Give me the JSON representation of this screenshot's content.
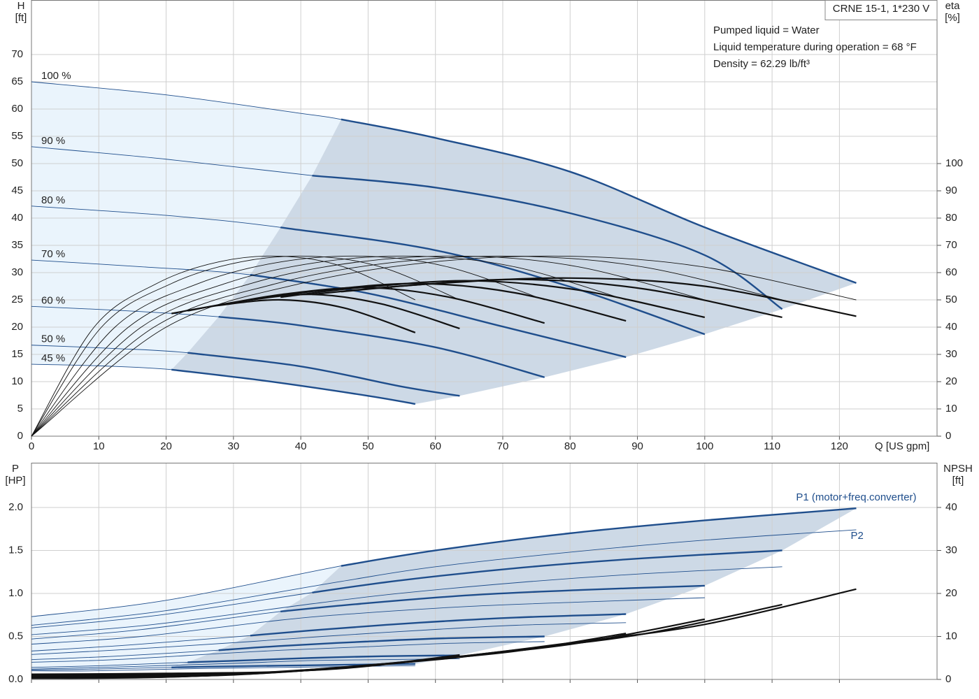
{
  "chart_data": [
    {
      "type": "line",
      "title": "CRNE 15-1, 1*230 V",
      "annotations": [
        "Pumped liquid = Water",
        "Liquid temperature during operation = 68 °F",
        "Density = 62.29 lb/ft³"
      ],
      "ylabel": "H",
      "ylabel_unit": "[ft]",
      "y2label": "eta",
      "y2label_unit": "[%]",
      "xlabel": "Q [US gpm]",
      "xlim": [
        0,
        134.5
      ],
      "xticks": [
        0,
        10,
        20,
        30,
        40,
        50,
        60,
        70,
        80,
        90,
        100,
        110,
        120
      ],
      "ylim": [
        0,
        80
      ],
      "yticks": [
        0,
        5,
        10,
        15,
        20,
        25,
        30,
        35,
        40,
        45,
        50,
        55,
        60,
        65,
        70
      ],
      "y2lim": [
        0,
        160
      ],
      "y2ticks": [
        0,
        10,
        20,
        30,
        40,
        50,
        60,
        70,
        80,
        90,
        100
      ],
      "grid": true,
      "xtick_labels": true,
      "area_colors": [
        "#eaf4fc",
        "#cdd9e6"
      ],
      "series": [
        {
          "name": "100 %",
          "color": "#1f4e8c",
          "line": "thin",
          "label_at": "start",
          "range": [
            46,
            122.5
          ],
          "x": [
            0,
            20,
            40,
            46,
            60,
            80,
            100,
            122.5
          ],
          "values": [
            65,
            62.6,
            59.2,
            58.1,
            54.7,
            48.5,
            38.3,
            28.1
          ]
        },
        {
          "name": "90 %",
          "color": "#1f4e8c",
          "line": "thin",
          "label_at": "start",
          "range": [
            41.7,
            111.5
          ],
          "x": [
            0,
            20,
            41.7,
            60,
            80,
            100,
            111.5
          ],
          "values": [
            53.1,
            50.8,
            47.8,
            45.6,
            40.9,
            33.2,
            23.3
          ]
        },
        {
          "name": "80 %",
          "color": "#1f4e8c",
          "line": "thin",
          "label_at": "start",
          "range": [
            37,
            100
          ],
          "x": [
            0,
            20,
            37,
            60,
            80,
            100
          ],
          "values": [
            42.2,
            40.5,
            38.3,
            34.1,
            27.4,
            18.7
          ]
        },
        {
          "name": "70 %",
          "color": "#1f4e8c",
          "line": "thin",
          "label_at": "start",
          "range": [
            32.5,
            88.3
          ],
          "x": [
            0,
            16,
            32.5,
            50,
            70,
            88.3
          ],
          "values": [
            32.3,
            31.1,
            29.6,
            26.2,
            20.1,
            14.5
          ]
        },
        {
          "name": "60 %",
          "color": "#1f4e8c",
          "line": "thin",
          "label_at": "start",
          "range": [
            27.8,
            76.2
          ],
          "x": [
            0,
            14,
            27.8,
            40,
            60,
            76.2
          ],
          "values": [
            23.8,
            23,
            21.9,
            20.3,
            16.3,
            10.8
          ]
        },
        {
          "name": "50 %",
          "color": "#1f4e8c",
          "line": "thin",
          "label_at": "start",
          "range": [
            23.2,
            63.6
          ],
          "x": [
            0,
            12,
            23.2,
            40,
            55,
            63.6
          ],
          "values": [
            16.7,
            16.1,
            15.3,
            12.8,
            9.1,
            7.4
          ]
        },
        {
          "name": "45 %",
          "color": "#1f4e8c",
          "line": "thin",
          "label_at": "start",
          "range": [
            20.8,
            57
          ],
          "x": [
            0,
            10,
            20.8,
            35,
            50,
            57
          ],
          "values": [
            13.2,
            12.9,
            12.2,
            10.1,
            7.4,
            5.9
          ]
        },
        {
          "color": "#111111",
          "line": "thin",
          "axis": "y2",
          "x": [
            0,
            20,
            40,
            60,
            80,
            100,
            122.5
          ],
          "values": [
            0,
            40,
            56,
            64,
            66,
            62,
            50
          ]
        },
        {
          "color": "#111111",
          "line": "thin",
          "axis": "y2",
          "x": [
            0,
            18.2,
            36.4,
            54.6,
            72.8,
            91,
            111.5
          ],
          "values": [
            0,
            40,
            56,
            64,
            66,
            62,
            50
          ]
        },
        {
          "color": "#111111",
          "line": "thin",
          "axis": "y2",
          "x": [
            0,
            16.3,
            32.6,
            48.9,
            65.2,
            81.5,
            100
          ],
          "values": [
            0,
            40,
            56,
            64,
            66,
            62,
            50
          ]
        },
        {
          "color": "#111111",
          "line": "thin",
          "axis": "y2",
          "x": [
            0,
            14.4,
            28.8,
            43.2,
            57.6,
            72,
            88.3
          ],
          "values": [
            0,
            40,
            56,
            64,
            66,
            62,
            50
          ]
        },
        {
          "color": "#111111",
          "line": "thin",
          "axis": "y2",
          "x": [
            0,
            12.4,
            24.8,
            37.2,
            49.6,
            62,
            76.2
          ],
          "values": [
            0,
            40,
            56,
            64,
            66,
            62,
            50
          ]
        },
        {
          "color": "#111111",
          "line": "thin",
          "axis": "y2",
          "x": [
            0,
            10.4,
            20.8,
            31.2,
            41.6,
            52,
            63.6
          ],
          "values": [
            0,
            40,
            56,
            64,
            66,
            62,
            50
          ]
        },
        {
          "color": "#111111",
          "line": "thin",
          "axis": "y2",
          "x": [
            0,
            9.3,
            18.6,
            27.9,
            37.2,
            46.5,
            57
          ],
          "values": [
            0,
            40,
            56,
            64,
            66,
            62,
            50
          ]
        },
        {
          "color": "#111111",
          "line": "thick",
          "axis": "y2",
          "x": [
            46,
            60,
            80,
            100,
            122.5
          ],
          "values": [
            53,
            56,
            58,
            55,
            44
          ]
        },
        {
          "color": "#111111",
          "line": "thick",
          "axis": "y2",
          "x": [
            41.7,
            54.6,
            72.8,
            91,
            111.5
          ],
          "values": [
            52,
            55,
            57.5,
            54,
            43.6
          ]
        },
        {
          "color": "#111111",
          "line": "thick",
          "axis": "y2",
          "x": [
            37,
            48.9,
            65.2,
            81.5,
            100
          ],
          "values": [
            51,
            54.5,
            57,
            53.5,
            43.6
          ]
        },
        {
          "color": "#111111",
          "line": "thick",
          "axis": "y2",
          "x": [
            32.5,
            43.2,
            57.6,
            72,
            88.3
          ],
          "values": [
            50,
            53.5,
            56,
            52.5,
            42.3
          ]
        },
        {
          "color": "#111111",
          "line": "thick",
          "axis": "y2",
          "x": [
            27.8,
            37.2,
            49.6,
            62,
            76.2
          ],
          "values": [
            48,
            52,
            54.5,
            51,
            41.5
          ]
        },
        {
          "color": "#111111",
          "line": "thick",
          "axis": "y2",
          "x": [
            23.2,
            31.2,
            41.6,
            52,
            63.6
          ],
          "values": [
            46,
            49.5,
            52,
            48.5,
            39.5
          ]
        },
        {
          "color": "#111111",
          "line": "thick",
          "axis": "y2",
          "x": [
            20.8,
            27.9,
            37.2,
            46.5,
            57
          ],
          "values": [
            45,
            48,
            50,
            47,
            38
          ]
        }
      ]
    },
    {
      "type": "line",
      "ylabel": "P",
      "ylabel_unit": "[HP]",
      "y2label": "NPSH",
      "y2label_unit": "[ft]",
      "xlim": [
        0,
        134.5
      ],
      "xticks": [
        0,
        10,
        20,
        30,
        40,
        50,
        60,
        70,
        80,
        90,
        100,
        110,
        120
      ],
      "ylim": [
        0,
        2.52
      ],
      "yticks": [
        {
          "value": 0,
          "label": "0.0"
        },
        0.5,
        {
          "value": 1,
          "label": "1.0"
        },
        1.5,
        {
          "value": 2,
          "label": "2.0"
        }
      ],
      "y2lim": [
        0,
        50.4
      ],
      "y2ticks": [
        0,
        10,
        20,
        30,
        40
      ],
      "grid": true,
      "xtick_labels": false,
      "area_colors": [
        "#eaf4fc",
        "#cdd9e6"
      ],
      "series": [
        {
          "name": "P1 (motor+freq.converter)",
          "color": "#1f4e8c",
          "line": "thin",
          "label_at": "above",
          "range": [
            46,
            122.5
          ],
          "x": [
            0,
            20,
            46,
            60,
            80,
            100,
            122.5
          ],
          "values": [
            0.73,
            0.92,
            1.32,
            1.5,
            1.7,
            1.85,
            1.99
          ]
        },
        {
          "color": "#1f4e8c",
          "line": "thin",
          "range": [
            41.7,
            111.5
          ],
          "x": [
            0,
            18.2,
            41.7,
            54.6,
            72.8,
            91,
            111.5
          ],
          "values": [
            0.6,
            0.74,
            1.01,
            1.15,
            1.3,
            1.41,
            1.5
          ]
        },
        {
          "color": "#1f4e8c",
          "line": "thin",
          "range": [
            37,
            100
          ],
          "x": [
            0,
            16.3,
            37,
            48.9,
            65.2,
            81.5,
            100
          ],
          "values": [
            0.47,
            0.58,
            0.79,
            0.88,
            0.98,
            1.04,
            1.09
          ]
        },
        {
          "color": "#1f4e8c",
          "line": "thin",
          "range": [
            32.5,
            88.3
          ],
          "x": [
            0,
            14.4,
            32.5,
            43.2,
            57.6,
            72,
            88.3
          ],
          "values": [
            0.33,
            0.4,
            0.51,
            0.58,
            0.66,
            0.72,
            0.76
          ]
        },
        {
          "color": "#1f4e8c",
          "line": "thin",
          "range": [
            27.8,
            76.2
          ],
          "x": [
            0,
            12.4,
            27.8,
            37.2,
            49.6,
            62,
            76.2
          ],
          "values": [
            0.23,
            0.27,
            0.34,
            0.39,
            0.44,
            0.48,
            0.5
          ]
        },
        {
          "color": "#1f4e8c",
          "line": "thin",
          "range": [
            23.2,
            63.6
          ],
          "x": [
            0,
            10.4,
            23.2,
            31.2,
            41.6,
            52,
            63.6
          ],
          "values": [
            0.14,
            0.16,
            0.2,
            0.22,
            0.25,
            0.27,
            0.28
          ]
        },
        {
          "color": "#1f4e8c",
          "line": "thin",
          "range": [
            20.8,
            57
          ],
          "x": [
            0,
            9.3,
            20.8,
            27.9,
            37.2,
            46.5,
            57
          ],
          "values": [
            0.11,
            0.12,
            0.14,
            0.15,
            0.16,
            0.17,
            0.18
          ]
        },
        {
          "name": "P2",
          "color": "#1f4e8c",
          "line": "thin",
          "label_at": "below",
          "x": [
            0,
            20,
            46,
            60,
            80,
            100,
            122.5
          ],
          "values": [
            0.63,
            0.8,
            1.14,
            1.31,
            1.48,
            1.62,
            1.74
          ]
        },
        {
          "color": "#1f4e8c",
          "line": "thin",
          "x": [
            0,
            18.2,
            41.7,
            54.6,
            72.8,
            91,
            111.5
          ],
          "values": [
            0.52,
            0.64,
            0.88,
            1,
            1.13,
            1.23,
            1.31
          ]
        },
        {
          "color": "#1f4e8c",
          "line": "thin",
          "x": [
            0,
            16.3,
            37,
            48.9,
            65.2,
            81.5,
            100
          ],
          "values": [
            0.41,
            0.5,
            0.69,
            0.77,
            0.85,
            0.9,
            0.95
          ]
        },
        {
          "color": "#1f4e8c",
          "line": "thin",
          "x": [
            0,
            14.4,
            32.5,
            43.2,
            57.6,
            72,
            88.3
          ],
          "values": [
            0.29,
            0.35,
            0.44,
            0.5,
            0.57,
            0.63,
            0.66
          ]
        },
        {
          "color": "#1f4e8c",
          "line": "thin",
          "x": [
            0,
            12.4,
            27.8,
            37.2,
            49.6,
            62,
            76.2
          ],
          "values": [
            0.2,
            0.23,
            0.3,
            0.34,
            0.38,
            0.42,
            0.44
          ]
        },
        {
          "color": "#1f4e8c",
          "line": "thin",
          "x": [
            0,
            10.4,
            23.2,
            31.2,
            41.6,
            52,
            63.6
          ],
          "values": [
            0.12,
            0.14,
            0.17,
            0.19,
            0.22,
            0.23,
            0.24
          ]
        },
        {
          "color": "#1f4e8c",
          "line": "thin",
          "x": [
            0,
            9.3,
            20.8,
            27.9,
            37.2,
            46.5,
            57
          ],
          "values": [
            0.1,
            0.1,
            0.12,
            0.13,
            0.14,
            0.15,
            0.16
          ]
        },
        {
          "color": "#111111",
          "line": "thick",
          "axis": "y2",
          "x": [
            0,
            20,
            40,
            60,
            80,
            100,
            122.5
          ],
          "values": [
            1.2,
            1.4,
            2,
            4.7,
            8.5,
            12.8,
            21
          ]
        },
        {
          "color": "#111111",
          "line": "thick",
          "axis": "y2",
          "x": [
            0,
            18.2,
            36.4,
            54.6,
            72.8,
            91,
            111.5
          ],
          "values": [
            1,
            1.2,
            1.7,
            3.9,
            7,
            10.6,
            17.4
          ]
        },
        {
          "color": "#111111",
          "line": "thick",
          "axis": "y2",
          "x": [
            0,
            16.3,
            32.6,
            48.9,
            65.2,
            81.5,
            100
          ],
          "values": [
            0.8,
            0.9,
            1.3,
            3.1,
            5.6,
            8.5,
            14
          ]
        },
        {
          "color": "#111111",
          "line": "thick",
          "axis": "y2",
          "x": [
            0,
            14.4,
            28.8,
            43.2,
            57.6,
            72,
            88.3
          ],
          "values": [
            0.6,
            0.7,
            1,
            2.4,
            4.4,
            6.6,
            10.7
          ]
        },
        {
          "color": "#111111",
          "line": "thick",
          "axis": "y2",
          "x": [
            0,
            12.4,
            24.8,
            37.2,
            49.6,
            62,
            76.2
          ],
          "values": [
            0.5,
            0.5,
            0.8,
            1.8,
            3.3,
            4.9,
            7.6
          ]
        },
        {
          "color": "#111111",
          "line": "thick",
          "axis": "y2",
          "x": [
            0,
            10.4,
            20.8,
            31.2,
            41.6,
            52,
            63.6
          ],
          "values": [
            0.3,
            0.4,
            0.6,
            1.3,
            2.3,
            3.5,
            5.7
          ]
        },
        {
          "color": "#111111",
          "line": "thick",
          "axis": "y2",
          "x": [
            0,
            9.3,
            18.6,
            27.9,
            37.2,
            46.5,
            57
          ],
          "values": [
            0.3,
            0.3,
            0.5,
            1,
            1.8,
            2.6,
            4.2
          ]
        }
      ]
    }
  ]
}
